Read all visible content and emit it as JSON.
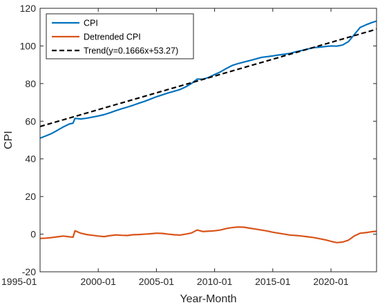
{
  "chart_data": {
    "type": "line",
    "xlabel": "Year-Month",
    "ylabel": "CPI",
    "x_ticks": [
      "1995-01",
      "2000-01",
      "2005-01",
      "2010-01",
      "2015-01",
      "2020-01"
    ],
    "xlim": [
      "1995-01",
      "2023-12"
    ],
    "ylim": [
      -20,
      120
    ],
    "y_ticks": [
      -20,
      0,
      20,
      40,
      60,
      80,
      100,
      120
    ],
    "grid": false,
    "legend_placement": "top-left",
    "series": [
      {
        "name": "CPI",
        "color": "#0072BD",
        "style": "solid",
        "points": [
          [
            "1995-01",
            51.0
          ],
          [
            "1995-07",
            52.2
          ],
          [
            "1996-01",
            53.5
          ],
          [
            "1996-07",
            55.2
          ],
          [
            "1997-01",
            57.0
          ],
          [
            "1997-07",
            58.5
          ],
          [
            "1997-11",
            59.0
          ],
          [
            "1998-01",
            61.5
          ],
          [
            "1998-07",
            61.2
          ],
          [
            "1999-01",
            61.6
          ],
          [
            "1999-07",
            62.2
          ],
          [
            "2000-01",
            62.8
          ],
          [
            "2000-07",
            63.5
          ],
          [
            "2001-01",
            64.5
          ],
          [
            "2001-07",
            65.6
          ],
          [
            "2002-01",
            66.6
          ],
          [
            "2002-07",
            67.5
          ],
          [
            "2003-01",
            68.5
          ],
          [
            "2003-07",
            69.6
          ],
          [
            "2004-01",
            70.6
          ],
          [
            "2004-07",
            71.8
          ],
          [
            "2005-01",
            73.0
          ],
          [
            "2005-07",
            74.0
          ],
          [
            "2006-01",
            75.0
          ],
          [
            "2006-07",
            75.9
          ],
          [
            "2007-01",
            76.8
          ],
          [
            "2007-07",
            78.2
          ],
          [
            "2008-01",
            80.0
          ],
          [
            "2008-07",
            82.4
          ],
          [
            "2009-01",
            82.3
          ],
          [
            "2009-07",
            83.3
          ],
          [
            "2010-01",
            84.8
          ],
          [
            "2010-07",
            86.2
          ],
          [
            "2011-01",
            88.0
          ],
          [
            "2011-07",
            89.6
          ],
          [
            "2012-01",
            90.6
          ],
          [
            "2012-07",
            91.4
          ],
          [
            "2013-01",
            92.2
          ],
          [
            "2013-07",
            93.0
          ],
          [
            "2014-01",
            93.9
          ],
          [
            "2014-07",
            94.3
          ],
          [
            "2015-01",
            94.7
          ],
          [
            "2015-07",
            95.2
          ],
          [
            "2016-01",
            95.6
          ],
          [
            "2016-07",
            96.1
          ],
          [
            "2017-01",
            96.9
          ],
          [
            "2017-07",
            97.6
          ],
          [
            "2018-01",
            98.4
          ],
          [
            "2018-07",
            99.1
          ],
          [
            "2019-01",
            99.3
          ],
          [
            "2019-07",
            99.7
          ],
          [
            "2020-01",
            100.0
          ],
          [
            "2020-07",
            99.9
          ],
          [
            "2021-01",
            100.5
          ],
          [
            "2021-07",
            102.3
          ],
          [
            "2022-01",
            106.0
          ],
          [
            "2022-07",
            109.8
          ],
          [
            "2023-01",
            111.2
          ],
          [
            "2023-07",
            112.4
          ],
          [
            "2023-12",
            113.2
          ]
        ]
      },
      {
        "name": "Detrended CPI",
        "color": "#D95319",
        "style": "solid",
        "points": [
          [
            "1995-01",
            -2.3
          ],
          [
            "1995-07",
            -2.1
          ],
          [
            "1996-01",
            -1.8
          ],
          [
            "1996-07",
            -1.4
          ],
          [
            "1997-01",
            -1.0
          ],
          [
            "1997-07",
            -1.4
          ],
          [
            "1997-11",
            -1.6
          ],
          [
            "1998-01",
            1.8
          ],
          [
            "1998-07",
            0.5
          ],
          [
            "1999-01",
            -0.2
          ],
          [
            "1999-07",
            -0.6
          ],
          [
            "2000-01",
            -1.0
          ],
          [
            "2000-07",
            -1.3
          ],
          [
            "2001-01",
            -0.8
          ],
          [
            "2001-07",
            -0.4
          ],
          [
            "2002-01",
            -0.6
          ],
          [
            "2002-07",
            -0.7
          ],
          [
            "2003-01",
            -0.3
          ],
          [
            "2003-07",
            -0.2
          ],
          [
            "2004-01",
            0.0
          ],
          [
            "2004-07",
            0.2
          ],
          [
            "2005-01",
            0.5
          ],
          [
            "2005-07",
            0.4
          ],
          [
            "2006-01",
            0.0
          ],
          [
            "2006-07",
            -0.3
          ],
          [
            "2007-01",
            -0.5
          ],
          [
            "2007-07",
            0.0
          ],
          [
            "2008-01",
            0.6
          ],
          [
            "2008-07",
            2.2
          ],
          [
            "2009-01",
            1.4
          ],
          [
            "2009-07",
            1.6
          ],
          [
            "2010-01",
            1.8
          ],
          [
            "2010-07",
            2.2
          ],
          [
            "2011-01",
            3.0
          ],
          [
            "2011-07",
            3.5
          ],
          [
            "2012-01",
            3.8
          ],
          [
            "2012-07",
            3.7
          ],
          [
            "2013-01",
            3.2
          ],
          [
            "2013-07",
            2.7
          ],
          [
            "2014-01",
            2.2
          ],
          [
            "2014-07",
            1.7
          ],
          [
            "2015-01",
            1.0
          ],
          [
            "2015-07",
            0.5
          ],
          [
            "2016-01",
            0.0
          ],
          [
            "2016-07",
            -0.5
          ],
          [
            "2017-01",
            -0.7
          ],
          [
            "2017-07",
            -1.0
          ],
          [
            "2018-01",
            -1.4
          ],
          [
            "2018-07",
            -1.8
          ],
          [
            "2019-01",
            -2.4
          ],
          [
            "2019-07",
            -3.0
          ],
          [
            "2020-01",
            -3.8
          ],
          [
            "2020-07",
            -4.5
          ],
          [
            "2021-01",
            -4.2
          ],
          [
            "2021-07",
            -3.2
          ],
          [
            "2022-01",
            -1.0
          ],
          [
            "2022-07",
            0.5
          ],
          [
            "2023-01",
            0.8
          ],
          [
            "2023-07",
            1.3
          ],
          [
            "2023-12",
            1.5
          ]
        ]
      },
      {
        "name": "Trend(y=0.1666x+53.27)",
        "color": "#000000",
        "style": "dashed",
        "points": [
          [
            "1995-01",
            57.2
          ],
          [
            "2023-12",
            108.9
          ]
        ]
      }
    ]
  }
}
